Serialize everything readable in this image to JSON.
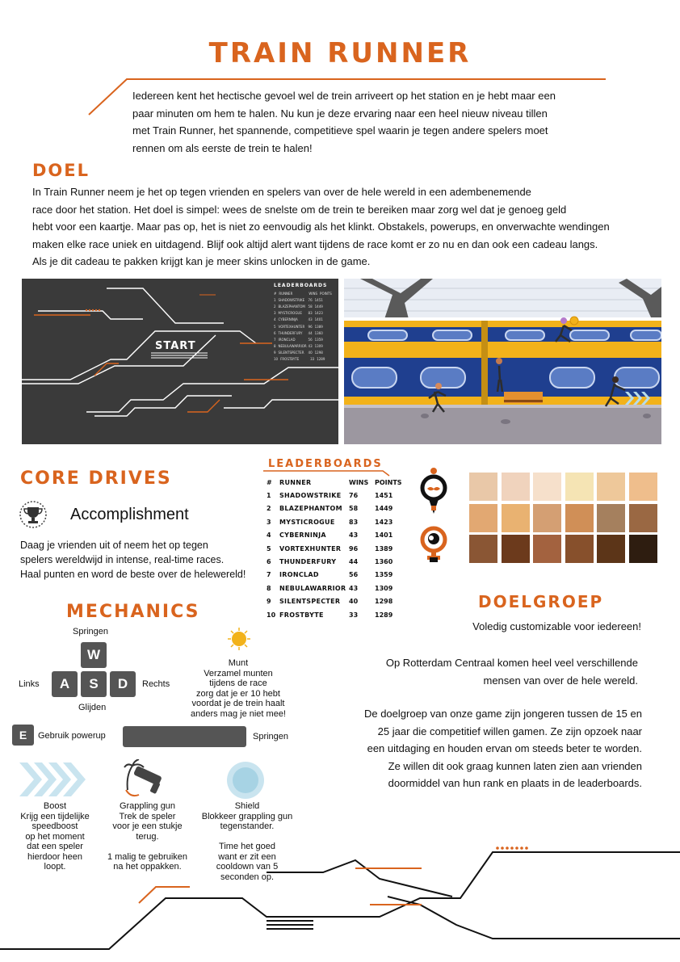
{
  "title": "TRAIN RUNNER",
  "intro": [
    "Iedereen kent het hectische gevoel wel de trein arriveert op het station en je hebt maar een",
    "paar minuten om hem te halen. Nu kun je deze ervaring naar een heel nieuw niveau tillen",
    "met Train Runner, het spannende, competitieve spel waarin je tegen andere spelers moet",
    "rennen om als eerste de trein te halen!"
  ],
  "doel": {
    "heading": "DOEL",
    "lines": [
      "In Train Runner neem je het op tegen vrienden en spelers van over de hele wereld in een adembenemende",
      "race door het station. Het doel is simpel: wees de snelste om de trein te bereiken maar zorg wel dat je genoeg geld",
      "hebt voor een kaartje. Maar pas op, het is niet zo eenvoudig als het klinkt. Obstakels, powerups, en onverwachte wendingen",
      "maken elke race uniek en uitdagend. Blijf ook altijd alert want tijdens de race komt er zo nu en dan ook een cadeau langs.",
      "Als je dit cadeau te pakken krijgt kan je meer skins unlocken in de game."
    ]
  },
  "preview": {
    "start_label": "START",
    "mini_title": "LEADERBOARDS",
    "mini_header": [
      "#",
      "RUNNER",
      "WINS",
      "POINTS"
    ]
  },
  "core_drives": {
    "heading": "CORE DRIVES",
    "drive": "Accomplishment",
    "lines": [
      "Daag je vrienden uit of neem het op tegen",
      "spelers wereldwijd in intense, real-time races.",
      "Haal punten en word de beste over de helewereld!"
    ]
  },
  "leaderboard": {
    "heading": "LEADERBOARDS",
    "header": [
      "#",
      "RUNNER",
      "WINS",
      "POINTS"
    ],
    "rows": [
      [
        "1",
        "SHADOWSTRIKE",
        "76",
        "1451"
      ],
      [
        "2",
        "BLAZEPHANTOM",
        "58",
        "1449"
      ],
      [
        "3",
        "MYSTICROGUE",
        "83",
        "1423"
      ],
      [
        "4",
        "CYBERNINJA",
        "43",
        "1401"
      ],
      [
        "5",
        "VORTEXHUNTER",
        "96",
        "1389"
      ],
      [
        "6",
        "THUNDERFURY",
        "44",
        "1360"
      ],
      [
        "7",
        "IRONCLAD",
        "56",
        "1359"
      ],
      [
        "8",
        "NEBULAWARRIOR",
        "43",
        "1309"
      ],
      [
        "9",
        "SILENTSPECTER",
        "40",
        "1298"
      ],
      [
        "10",
        "FROSTBYTE",
        "33",
        "1289"
      ]
    ]
  },
  "mechanics": {
    "heading": "MECHANICS",
    "keys": {
      "w": "W",
      "a": "A",
      "s": "S",
      "d": "D",
      "e": "E"
    },
    "labels": {
      "up": "Springen",
      "left": "Links",
      "right": "Rechts",
      "down": "Glijden",
      "powerup": "Gebruik powerup",
      "space": "Springen"
    },
    "coin": [
      "Munt",
      "Verzamel munten",
      "tijdens de race",
      "zorg dat je er 10 hebt",
      "voordat je de trein haalt",
      "anders mag je niet mee!"
    ],
    "boost": [
      "Boost",
      "Krijg een tijdelijke",
      "speedboost",
      "op het moment",
      "dat een speler",
      "hierdoor heen",
      "loopt."
    ],
    "grapple": [
      "Grappling gun",
      "Trek de speler",
      "voor je een stukje",
      "terug.",
      "",
      "1 malig te gebruiken",
      "na het oppakken."
    ],
    "shield": [
      "Shield",
      "Blokkeer grappling gun",
      "tegenstander.",
      "",
      "Time het goed",
      "want er zit een",
      "cooldown van 5",
      "seconden op."
    ]
  },
  "doelgroep": {
    "heading": "DOELGROEP",
    "tagline": "Voledig customizable voor iedereen!",
    "p1": [
      "Op Rotterdam Centraal komen heel veel verschillende",
      "mensen van over de hele wereld."
    ],
    "p2": [
      "De doelgroep van onze game zijn jongeren tussen de 15 en",
      "25 jaar die competitief willen gamen. Ze zijn opzoek naar",
      "een uitdaging en houden ervan om steeds beter te worden.",
      "Ze willen dit ook graag kunnen laten zien aan vrienden",
      "doormiddel van hun rank en plaats in de leaderboards."
    ]
  },
  "colors": {
    "accent": "#d9641e",
    "skin_tones": [
      "#e9c8a8",
      "#f0d3bd",
      "#f6e0cb",
      "#f5e4b4",
      "#eec89a",
      "#efbe8c",
      "#e2a872",
      "#e9b271",
      "#d49f73",
      "#d08f57",
      "#a5805e",
      "#9a6843",
      "#8a5634",
      "#6c3a1c",
      "#a3623f",
      "#87502c",
      "#5c3518",
      "#2e1d10"
    ]
  },
  "icons": [
    "trophy-icon",
    "coin-icon",
    "boost-icon",
    "grappling-gun-icon",
    "shield-icon",
    "male-icon",
    "female-icon"
  ]
}
